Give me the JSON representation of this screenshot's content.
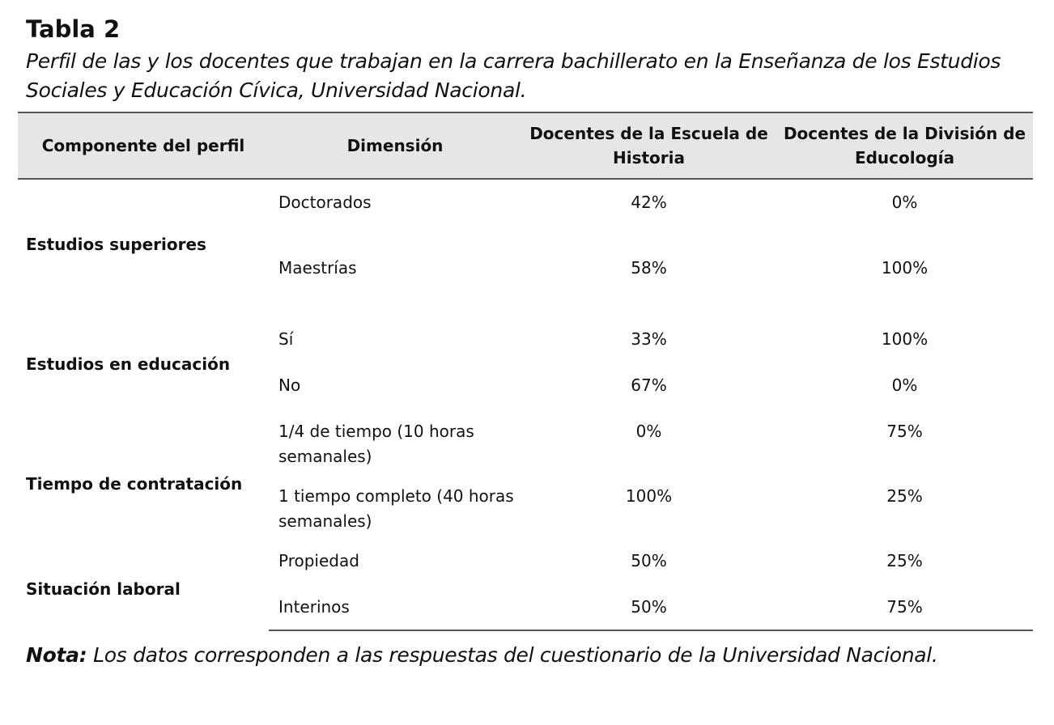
{
  "table_label": "Tabla 2",
  "caption": "Perfil de las y los docentes que trabajan en la carrera bachillerato en la Enseñanza de los Estudios Sociales y Educación Cívica, Universidad Nacional.",
  "headers": {
    "component": "Componente del perfil",
    "dimension": "Dimensión",
    "historia": "Docentes de la Escuela de Historia",
    "educologia": "Docentes de la División de Educología"
  },
  "groups": [
    {
      "component": "Estudios superiores",
      "rows": [
        {
          "dimension": "Doctorados",
          "historia": "42%",
          "educologia": "0%"
        },
        {
          "dimension": "Maestrías",
          "historia": "58%",
          "educologia": "100%"
        }
      ]
    },
    {
      "component": "Estudios en educación",
      "rows": [
        {
          "dimension": "Sí",
          "historia": "33%",
          "educologia": "100%"
        },
        {
          "dimension": "No",
          "historia": "67%",
          "educologia": "0%"
        }
      ]
    },
    {
      "component": "Tiempo de contratación",
      "rows": [
        {
          "dimension": "1/4 de tiempo (10 horas semanales)",
          "historia": "0%",
          "educologia": "75%"
        },
        {
          "dimension": "1 tiempo completo (40 horas semanales)",
          "historia": "100%",
          "educologia": "25%"
        }
      ]
    },
    {
      "component": "Situación laboral",
      "rows": [
        {
          "dimension": "Propiedad",
          "historia": "50%",
          "educologia": "25%"
        },
        {
          "dimension": "Interinos",
          "historia": "50%",
          "educologia": "75%"
        }
      ]
    }
  ],
  "note": {
    "label": "Nota:",
    "text": " Los datos corresponden a las respuestas del cuestionario de la Universidad Nacional."
  }
}
